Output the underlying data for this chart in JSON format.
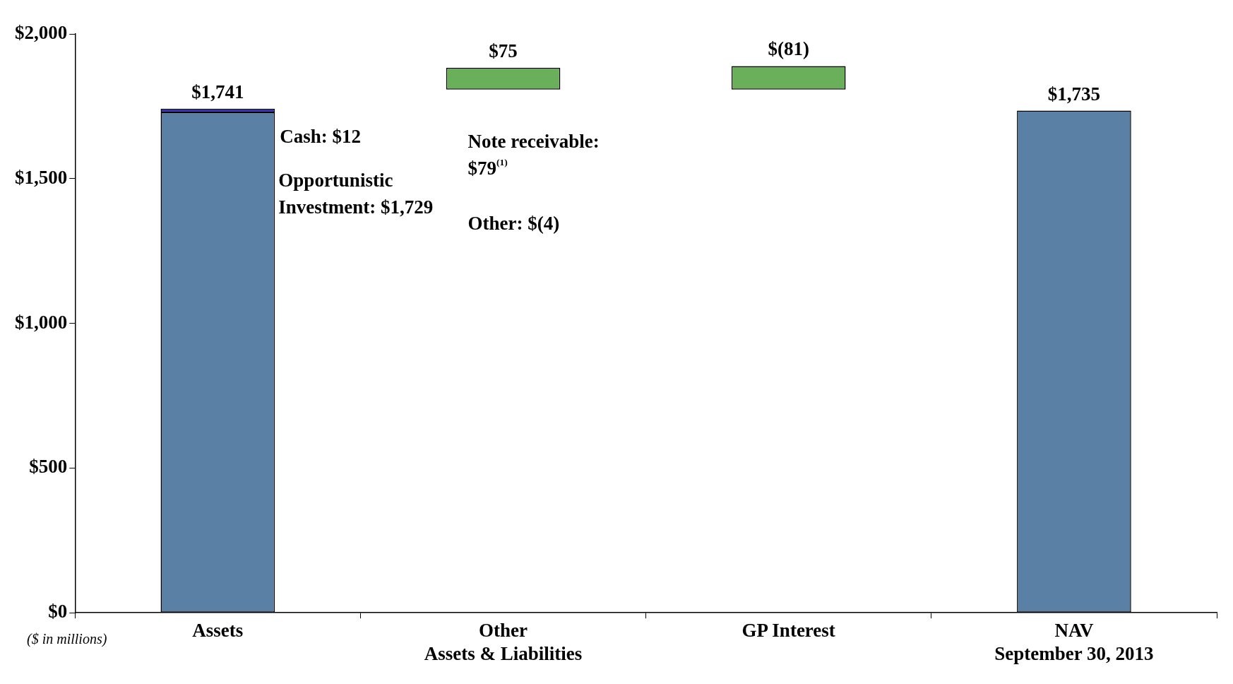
{
  "chart_data": {
    "type": "bar",
    "stacked": true,
    "categories": [
      "Assets",
      "Other\nAssets & Liabilities",
      "GP Interest",
      "NAV\nSeptember 30, 2013"
    ],
    "series": [
      {
        "color": "#5b80a5",
        "values": [
          1729,
          null,
          null,
          1735
        ]
      },
      {
        "color": "#1c1cc8",
        "values": [
          12,
          null,
          null,
          null
        ]
      },
      {
        "color": "#6aaf5a",
        "values": [
          null,
          75,
          -81,
          null
        ],
        "base": [
          null,
          1808,
          1889,
          null
        ]
      }
    ],
    "totals": [
      "$1,741",
      "$75",
      "$(81)",
      "$1,735"
    ],
    "ylim": [
      0,
      2000
    ],
    "yticks": [
      {
        "value": 0,
        "label": "$0"
      },
      {
        "value": 500,
        "label": "$500"
      },
      {
        "value": 1000,
        "label": "$1,000"
      },
      {
        "value": 1500,
        "label": "$1,500"
      },
      {
        "value": 2000,
        "label": "$2,000"
      }
    ],
    "grid": false,
    "legend": false,
    "annotations": [
      "Cash: $12",
      "Opportunistic Investment: $1,729",
      "Note receivable: $79$^{(1)}$",
      "Other: $(4)",
      "($ in millions)"
    ]
  }
}
